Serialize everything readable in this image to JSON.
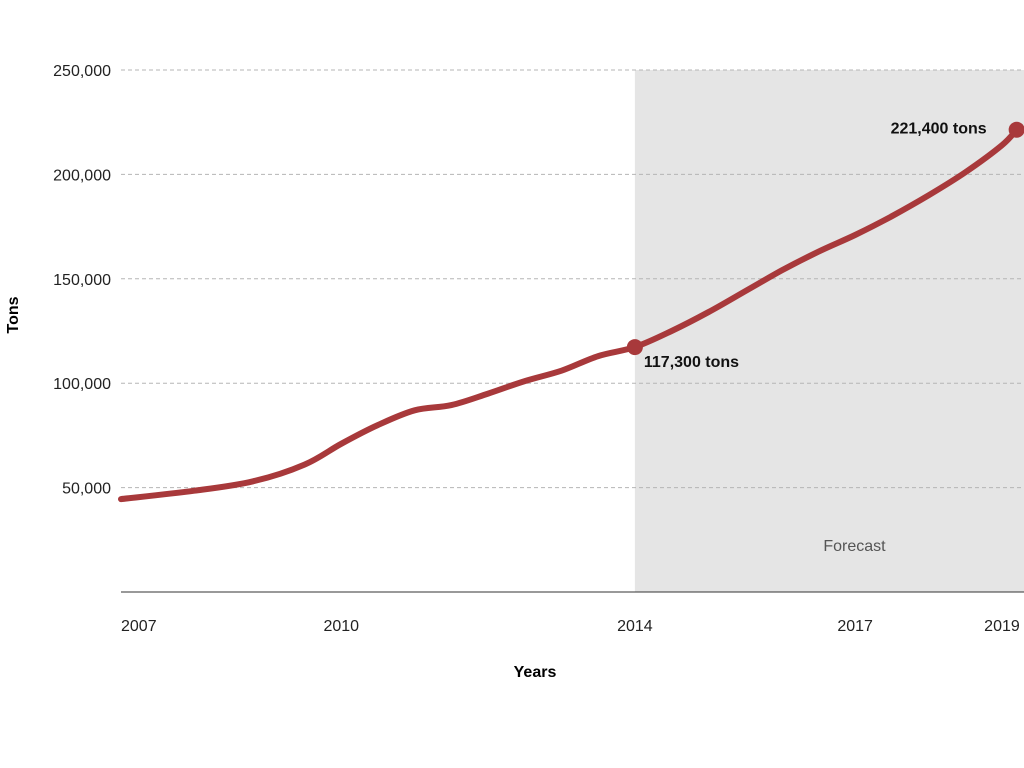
{
  "chart_data": {
    "type": "line",
    "xlabel": "Years",
    "ylabel": "Tons",
    "xlim": [
      2007,
      2019.3
    ],
    "ylim": [
      0,
      250000
    ],
    "x_ticks": [
      2007,
      2010,
      2014,
      2017,
      2019
    ],
    "x_tick_labels": [
      "2007",
      "2010",
      "2014",
      "2017",
      "2019"
    ],
    "y_ticks": [
      50000,
      100000,
      150000,
      200000,
      250000
    ],
    "y_tick_labels": [
      "50,000",
      "100,000",
      "150,000",
      "200,000",
      "250,000"
    ],
    "grid": true,
    "series": [
      {
        "color": "#a8393b",
        "x": [
          2007,
          2008,
          2008.8,
          2009.5,
          2010,
          2010.5,
          2011,
          2011.5,
          2012,
          2012.5,
          2013,
          2013.5,
          2014,
          2014.5,
          2015,
          2015.5,
          2016,
          2016.5,
          2017,
          2017.5,
          2018,
          2018.5,
          2019,
          2019.2
        ],
        "y": [
          44500,
          48500,
          53000,
          61000,
          71000,
          80000,
          87000,
          89500,
          95000,
          101000,
          106000,
          113000,
          117300,
          125000,
          134000,
          144000,
          154000,
          163000,
          171000,
          180000,
          190000,
          201000,
          214000,
          221400
        ]
      }
    ],
    "highlighted_points": [
      {
        "x": 2014,
        "y": 117300,
        "label": "117,300 tons"
      },
      {
        "x": 2019.2,
        "y": 221400,
        "label": "221,400 tons"
      }
    ],
    "shaded_region": {
      "x_start": 2014,
      "x_end": 2019.3,
      "label": "Forecast",
      "color": "#e5e5e5"
    }
  }
}
